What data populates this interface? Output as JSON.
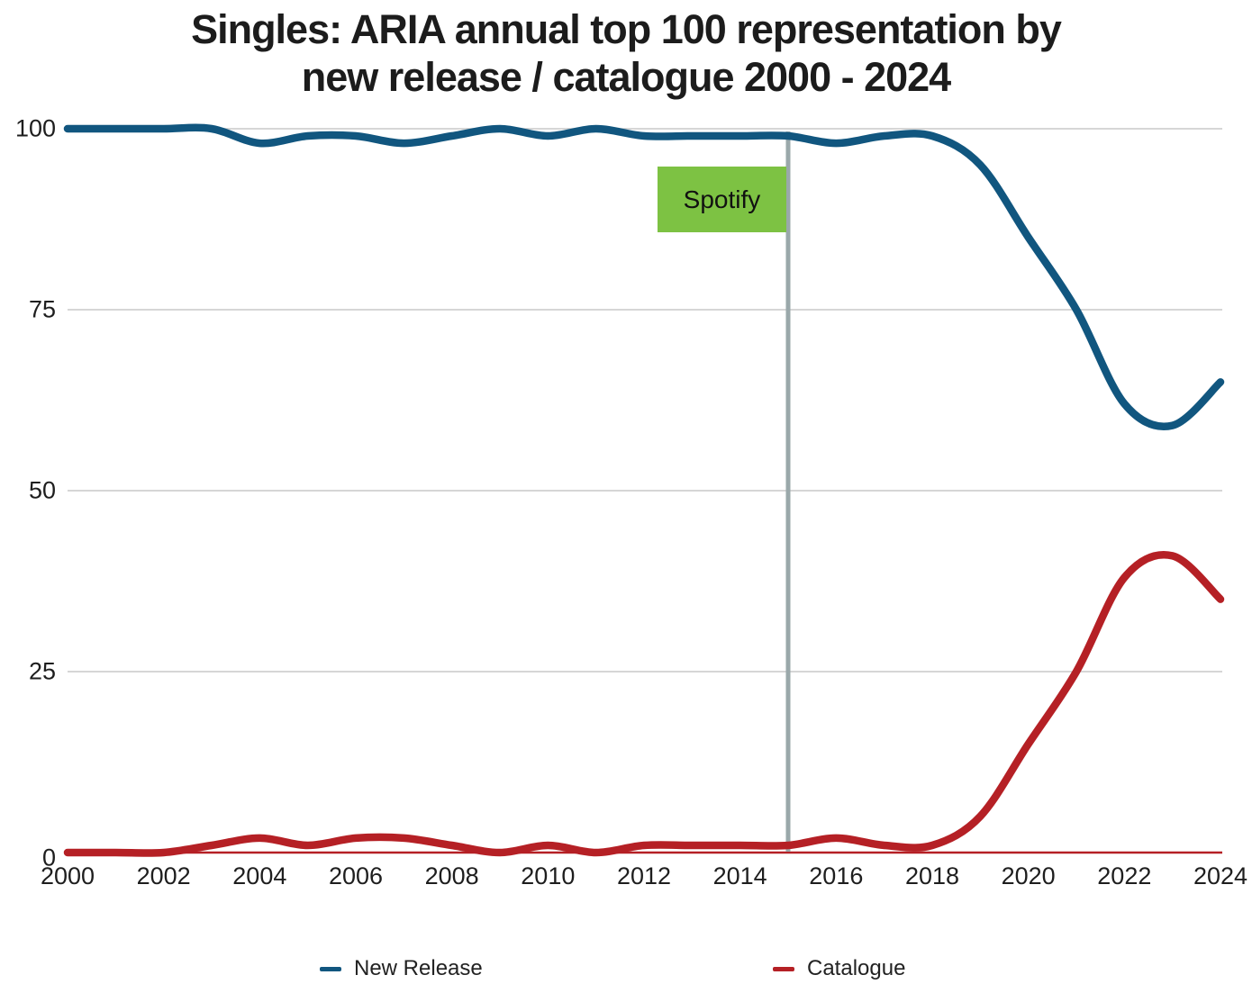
{
  "title_line1": "Singles: ARIA annual top 100 representation by",
  "title_line2": "new release / catalogue 2000 - 2024",
  "chart_data": {
    "type": "line",
    "title": "Singles: ARIA annual top 100 representation by new release / catalogue 2000 - 2024",
    "xlabel": "",
    "ylabel": "",
    "x": [
      2000,
      2001,
      2002,
      2003,
      2004,
      2005,
      2006,
      2007,
      2008,
      2009,
      2010,
      2011,
      2012,
      2013,
      2014,
      2015,
      2016,
      2017,
      2018,
      2019,
      2020,
      2021,
      2022,
      2023,
      2024
    ],
    "series": [
      {
        "name": "New Release",
        "color": "#11567f",
        "values": [
          100,
          100,
          100,
          100,
          98,
          99,
          99,
          98,
          99,
          100,
          99,
          100,
          99,
          99,
          99,
          99,
          98,
          99,
          99,
          95,
          85,
          75,
          62,
          59,
          65
        ]
      },
      {
        "name": "Catalogue",
        "color": "#b52025",
        "values": [
          0,
          0,
          0,
          1,
          2,
          1,
          2,
          2,
          1,
          0,
          1,
          0,
          1,
          1,
          1,
          1,
          2,
          1,
          1,
          5,
          15,
          25,
          38,
          41,
          35
        ]
      }
    ],
    "x_ticks": [
      2000,
      2002,
      2004,
      2006,
      2008,
      2010,
      2012,
      2014,
      2016,
      2018,
      2020,
      2022,
      2024
    ],
    "y_ticks": [
      0,
      25,
      50,
      75,
      100
    ],
    "xlim": [
      2000,
      2024
    ],
    "ylim": [
      0,
      100
    ],
    "grid": "horizontal",
    "baseline_color": "#b52025",
    "gridline_color": "#c9c9c9",
    "legend_position": "bottom",
    "annotation": {
      "label": "Spotify",
      "year": 2015,
      "line_color": "#9aa8aa",
      "box_color": "#7dc243"
    }
  },
  "legend": {
    "items": [
      {
        "label": "New Release",
        "color": "#11567f"
      },
      {
        "label": "Catalogue",
        "color": "#b52025"
      }
    ]
  },
  "annotation_label": "Spotify"
}
